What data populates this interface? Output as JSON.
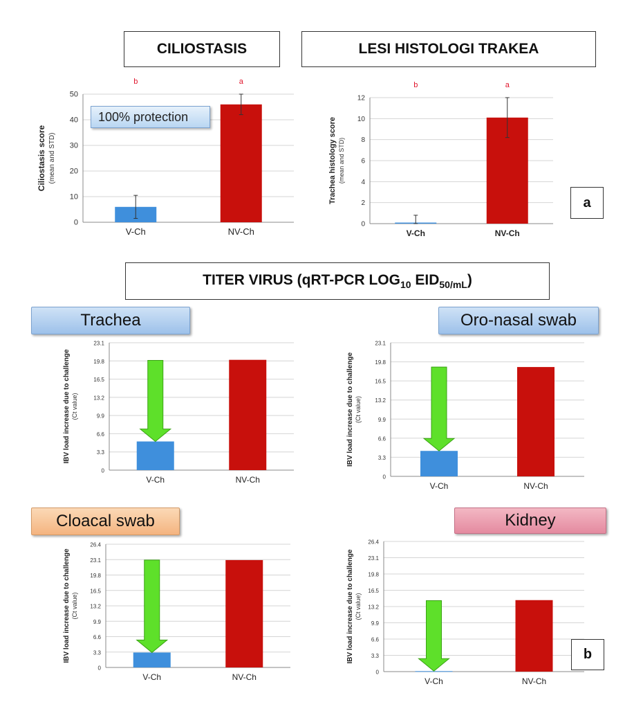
{
  "headers": {
    "ciliostasis": "CILIOSTASIS",
    "lesi": "LESI HISTOLOGI TRAKEA",
    "titer_main": "TITER VIRUS (qRT-PCR LOG",
    "titer_sub1": "10",
    "titer_mid": " EID",
    "titer_sub2": "50/mL",
    "titer_end": ")"
  },
  "panel_labels": {
    "a": "a",
    "b": "b"
  },
  "protection_note": "100% protection",
  "section_labels": {
    "trachea": "Trachea",
    "oronasal": "Oro-nasal swab",
    "cloacal": "Cloacal swab",
    "kidney": "Kidney"
  },
  "colors": {
    "vaccinated": "#3f8fdc",
    "non_vaccinated": "#c8100c",
    "arrow": "#5ee02a",
    "significance": "#e0142b"
  },
  "chart_data": [
    {
      "id": "ciliostasis",
      "type": "bar",
      "categories": [
        "V-Ch",
        "NV-Ch"
      ],
      "values": [
        6,
        46
      ],
      "error": [
        4.5,
        4
      ],
      "significance": [
        "b",
        "a"
      ],
      "ylabel": "Ciliostasis score",
      "ylabel2": "(mean and STD)",
      "ylim": [
        0,
        50
      ],
      "yticks": [
        "0",
        "10",
        "20",
        "30",
        "40",
        "50"
      ],
      "grid": true
    },
    {
      "id": "lesi",
      "type": "bar",
      "categories": [
        "V-Ch",
        "NV-Ch"
      ],
      "values": [
        0.1,
        10.1
      ],
      "error": [
        0.7,
        1.9
      ],
      "significance": [
        "b",
        "a"
      ],
      "ylabel": "Trachea histology score",
      "ylabel2": "(mean and STD)",
      "ylim": [
        0,
        12
      ],
      "yticks": [
        "0",
        "2",
        "4",
        "6",
        "8",
        "10",
        "12"
      ],
      "grid": true
    },
    {
      "id": "trachea",
      "type": "bar",
      "categories": [
        "V-Ch",
        "NV-Ch"
      ],
      "values": [
        5.2,
        20.0
      ],
      "arrow_from": 19.9,
      "ylabel": "IBV load increase due to challenge",
      "ylabel2": "(Ct value)",
      "ylim": [
        0,
        23.1
      ],
      "yticks": [
        "0",
        "3.3",
        "6.6",
        "9.9",
        "13.2",
        "16.5",
        "19.8",
        "23.1"
      ],
      "grid": true
    },
    {
      "id": "oronasal",
      "type": "bar",
      "categories": [
        "V-Ch",
        "NV-Ch"
      ],
      "values": [
        4.4,
        18.9
      ],
      "arrow_from": 18.9,
      "ylabel": "IBV load increase due to challenge",
      "ylabel2": "(Ct value)",
      "ylim": [
        0,
        23.1
      ],
      "yticks": [
        "0",
        "3.3",
        "6.6",
        "9.9",
        "13.2",
        "16.5",
        "19.8",
        "23.1"
      ],
      "grid": true
    },
    {
      "id": "cloacal",
      "type": "bar",
      "categories": [
        "V-Ch",
        "NV-Ch"
      ],
      "values": [
        3.2,
        23.0
      ],
      "arrow_from": 23.0,
      "ylabel": "IBV load increase due to challenge",
      "ylabel2": "(Ct value)",
      "ylim": [
        0,
        26.4
      ],
      "yticks": [
        "0",
        "3.3",
        "6.6",
        "9.9",
        "13.2",
        "16.5",
        "19.8",
        "23.1",
        "26.4"
      ],
      "grid": true
    },
    {
      "id": "kidney",
      "type": "bar",
      "categories": [
        "V-Ch",
        "NV-Ch"
      ],
      "values": [
        0.1,
        14.5
      ],
      "arrow_from": 14.4,
      "ylabel": "IBV load increase due to challenge",
      "ylabel2": "(Ct value)",
      "ylim": [
        0,
        26.4
      ],
      "yticks": [
        "0",
        "3.3",
        "6.6",
        "9.9",
        "13.2",
        "16.5",
        "19.8",
        "23.1",
        "26.4"
      ],
      "grid": true
    }
  ]
}
